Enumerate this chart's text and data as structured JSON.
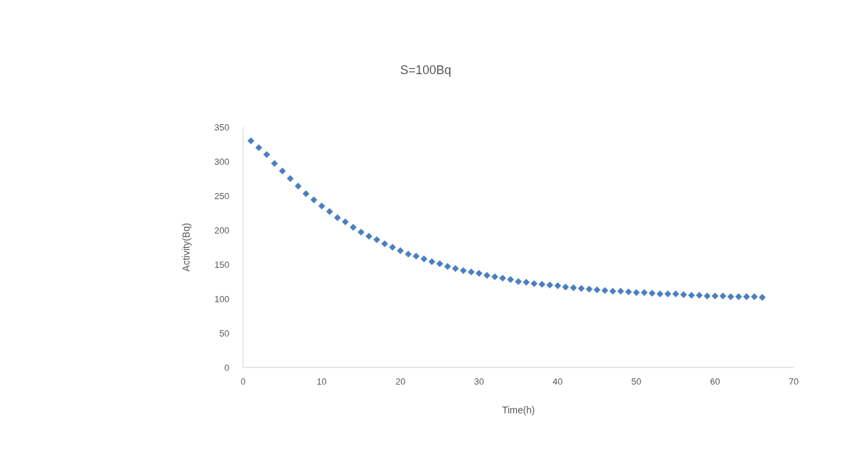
{
  "chart_data": {
    "type": "scatter",
    "title": "S=100Bq",
    "xlabel": "Time(h)",
    "ylabel": "Activity(Bq)",
    "x": [
      1,
      2,
      3,
      4,
      5,
      6,
      7,
      8,
      9,
      10,
      11,
      12,
      13,
      14,
      15,
      16,
      17,
      18,
      19,
      20,
      21,
      22,
      23,
      24,
      25,
      26,
      27,
      28,
      29,
      30,
      31,
      32,
      33,
      34,
      35,
      36,
      37,
      38,
      39,
      40,
      41,
      42,
      43,
      44,
      45,
      46,
      47,
      48,
      49,
      50,
      51,
      52,
      53,
      54,
      55,
      56,
      57,
      58,
      59,
      60,
      61,
      62,
      63,
      64,
      65,
      66
    ],
    "series": [
      {
        "color": "#4a7fc1",
        "values": [
          330,
          320,
          310,
          297,
          286,
          275,
          264,
          253,
          244,
          235,
          227,
          218,
          212,
          204,
          197,
          191,
          186,
          180,
          175,
          170,
          165,
          162,
          158,
          154,
          151,
          147,
          144,
          141,
          139,
          137,
          134,
          132,
          130,
          128,
          125,
          124,
          122,
          121,
          120,
          119,
          117,
          116,
          115,
          114,
          113,
          112,
          111,
          111,
          110,
          109,
          109,
          108,
          107,
          107,
          107,
          106,
          105,
          105,
          104,
          104,
          104,
          103,
          103,
          103,
          103,
          102
        ]
      }
    ],
    "xlim": [
      0,
      70
    ],
    "xticks": [
      0,
      10,
      20,
      30,
      40,
      50,
      60,
      70
    ],
    "ylim": [
      0,
      350
    ],
    "yticks": [
      0,
      50,
      100,
      150,
      200,
      250,
      300,
      350
    ],
    "grid": false,
    "legend": false,
    "marker": "diamond"
  }
}
